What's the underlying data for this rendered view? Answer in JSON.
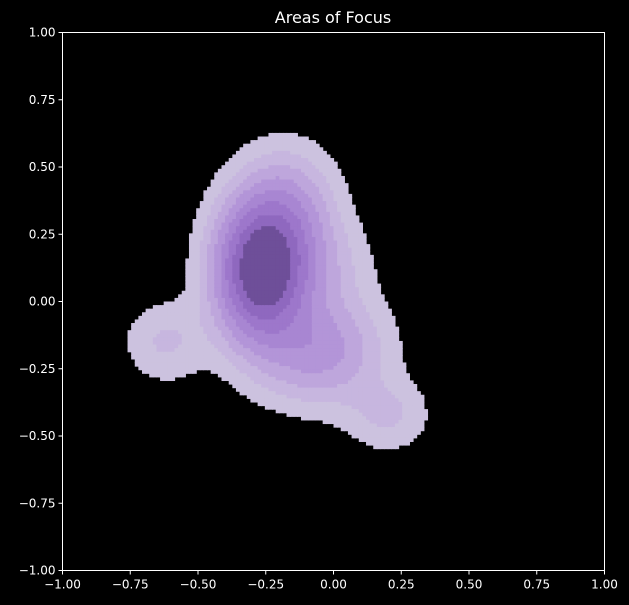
{
  "chart_data": {
    "type": "density_contour",
    "title": "Areas of Focus",
    "xlabel": "",
    "ylabel": "",
    "xlim": [
      -1.0,
      1.0
    ],
    "ylim": [
      -1.0,
      1.0
    ],
    "x_ticks": [
      "−1.00",
      "−0.75",
      "−0.50",
      "−0.25",
      "0.00",
      "0.25",
      "0.50",
      "0.75",
      "1.00"
    ],
    "y_ticks": [
      "1.00",
      "0.75",
      "0.50",
      "0.25",
      "0.00",
      "−0.25",
      "−0.50",
      "−0.75",
      "−1.00"
    ],
    "grid": false,
    "background_color": "#000000",
    "colors": {
      "levels": [
        "#ccc2df",
        "#c7b6df",
        "#bea6dc",
        "#b395d8",
        "#a886d2",
        "#9d77cb",
        "#8f68bf",
        "#6e4f99"
      ],
      "axis": "#ffffff"
    },
    "density_components": [
      {
        "x": -0.27,
        "y": 0.11,
        "sx": 0.11,
        "sy": 0.17,
        "weight": 1.0
      },
      {
        "x": -0.17,
        "y": 0.33,
        "sx": 0.12,
        "sy": 0.15,
        "weight": 0.3
      },
      {
        "x": -0.05,
        "y": -0.18,
        "sx": 0.15,
        "sy": 0.13,
        "weight": 0.35
      },
      {
        "x": -0.62,
        "y": -0.15,
        "sx": 0.1,
        "sy": 0.1,
        "weight": 0.13
      },
      {
        "x": 0.2,
        "y": -0.42,
        "sx": 0.1,
        "sy": 0.09,
        "weight": 0.13
      },
      {
        "x": -0.08,
        "y": 0.12,
        "sx": 0.14,
        "sy": 0.12,
        "weight": 0.15
      }
    ]
  }
}
